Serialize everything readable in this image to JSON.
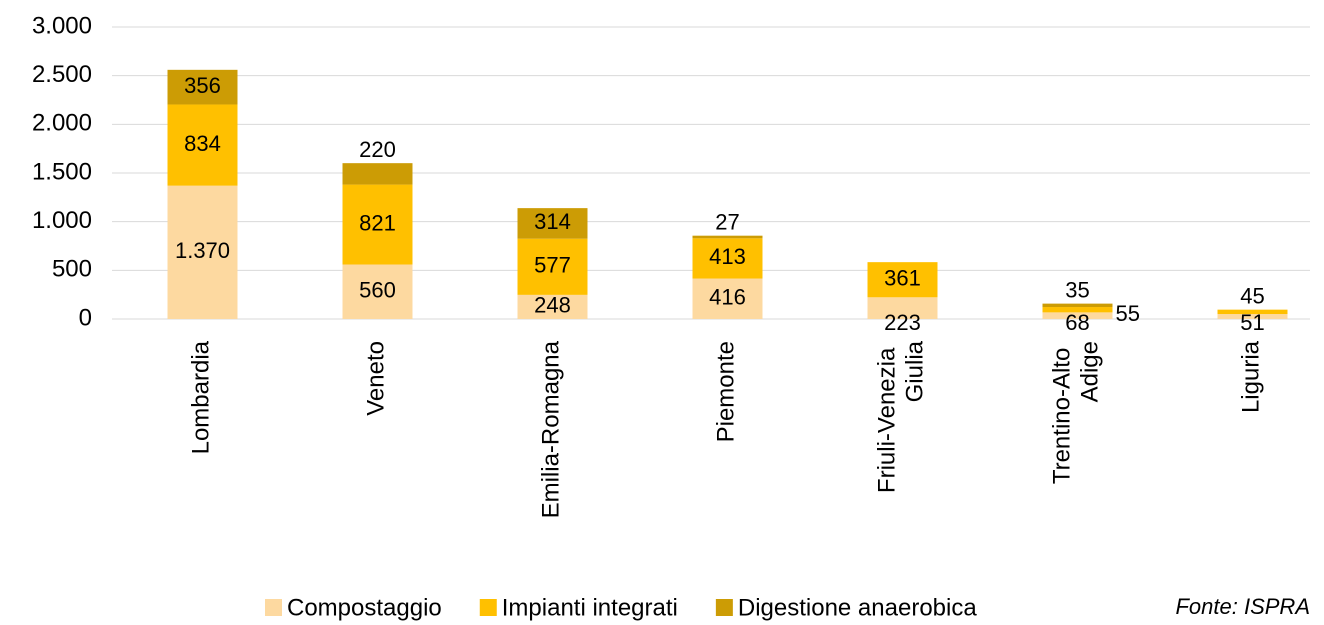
{
  "chart_data": {
    "type": "stacked_bar",
    "categories": [
      "Lombardia",
      "Veneto",
      "Emilia-Romagna",
      "Piemonte",
      "Friuli-Venezia Giulia",
      "Trentino-Alto Adige",
      "Liguria"
    ],
    "series": [
      {
        "name": "Compostaggio",
        "color": "#fdd9a0",
        "values": [
          1370,
          560,
          248,
          416,
          223,
          68,
          51
        ],
        "value_labels": [
          "1.370",
          "560",
          "248",
          "416",
          "223",
          "68",
          "51"
        ]
      },
      {
        "name": "Impianti integrati",
        "color": "#ffc000",
        "values": [
          834,
          821,
          577,
          413,
          361,
          55,
          45
        ]
      },
      {
        "name": "Digestione anaerobica",
        "color": "#cc9c05",
        "values": [
          356,
          220,
          314,
          27,
          null,
          35,
          null
        ]
      }
    ],
    "ylim": [
      0,
      3000
    ],
    "yticks": [
      0,
      500,
      {
        "value": 1000,
        "label": "1.000"
      },
      {
        "value": 1500,
        "label": "1.500"
      },
      {
        "value": 2000,
        "label": "2.000"
      },
      {
        "value": 2500,
        "label": "2.500"
      },
      {
        "value": 3000,
        "label": "3.000"
      }
    ],
    "grid": true,
    "legend": "bottom",
    "annotation": "Fonte: ISPRA"
  }
}
